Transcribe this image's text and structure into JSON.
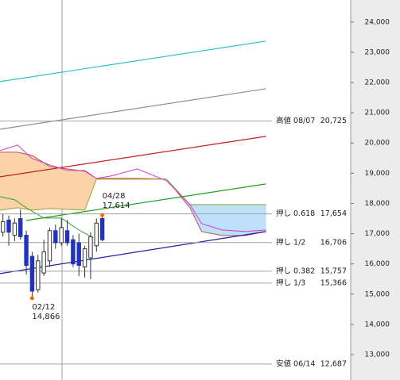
{
  "chart_data": {
    "type": "candlestick",
    "ylim": [
      12160,
      24730
    ],
    "yticks": [
      {
        "value": 24000,
        "label": "24,000"
      },
      {
        "value": 23000,
        "label": "23,000"
      },
      {
        "value": 22000,
        "label": "22,000"
      },
      {
        "value": 21000,
        "label": "21,000"
      },
      {
        "value": 20000,
        "label": "20,000"
      },
      {
        "value": 19000,
        "label": "19,000"
      },
      {
        "value": 18000,
        "label": "18,000"
      },
      {
        "value": 17000,
        "label": "17,000"
      },
      {
        "value": 16000,
        "label": "16,000"
      },
      {
        "value": 15000,
        "label": "15,000"
      },
      {
        "value": 14000,
        "label": "14,000"
      },
      {
        "value": 13000,
        "label": "13,000"
      }
    ],
    "xlim": [
      0.5,
      60.5
    ],
    "candles": {
      "x": [
        1,
        2,
        3,
        4,
        5,
        6,
        7,
        8,
        9,
        10,
        11,
        12,
        13,
        14,
        15,
        16,
        17,
        18
      ],
      "open": [
        17050,
        17450,
        16950,
        17500,
        16950,
        16250,
        15150,
        15700,
        16100,
        17100,
        16700,
        17100,
        16800,
        16700,
        15900,
        16200,
        16600,
        17500
      ],
      "high": [
        17650,
        17600,
        17500,
        17800,
        17100,
        16400,
        16300,
        16800,
        17200,
        17300,
        17500,
        17450,
        16950,
        17000,
        16600,
        17050,
        17500,
        17614
      ],
      "low": [
        16900,
        16600,
        16750,
        16800,
        15650,
        14866,
        15050,
        15600,
        15900,
        16500,
        16600,
        16600,
        15900,
        15600,
        15550,
        15500,
        16400,
        16750
      ],
      "close": [
        17400,
        17050,
        17350,
        16900,
        15950,
        15100,
        16100,
        16400,
        17100,
        16700,
        17200,
        16700,
        16000,
        15950,
        16500,
        16900,
        17350,
        16800
      ],
      "up_color": "#ffffff",
      "down_color": "#2233bb",
      "edge_color": "#333333"
    },
    "cloud": {
      "x": [
        0.5,
        3.5,
        6,
        9,
        12,
        15,
        17,
        19.5,
        24,
        29,
        33,
        35,
        38.5,
        42.5,
        46
      ],
      "span_a": {
        "color": "#c05050",
        "values": [
          19695,
          19695,
          19590,
          19223,
          19144,
          19065,
          18829,
          18829,
          18829,
          18803,
          17858,
          17070,
          16939,
          16939,
          17070
        ]
      },
      "span_b": {
        "color": "#9aa030",
        "values": [
          17779,
          17858,
          17779,
          17831,
          17805,
          17779,
          18803,
          18803,
          18803,
          18803,
          17963,
          17963,
          17963,
          17963,
          17963
        ]
      },
      "up_color": "#fcd3a8",
      "down_color": "#bfe0fb"
    },
    "lines": [
      {
        "color": "#d040d0",
        "x": [
          0.5,
          3.5,
          6,
          9,
          12,
          15,
          17,
          19.5,
          24,
          29,
          33,
          35,
          38.5,
          42.5,
          46
        ],
        "values": [
          19748,
          19931,
          19485,
          19275,
          19091,
          19091,
          18829,
          18908,
          19144,
          18750,
          17963,
          17333,
          17123,
          17070,
          17123
        ]
      },
      {
        "color": "#30a030",
        "x": [
          0.5,
          3,
          5,
          8,
          11,
          14,
          16.5
        ],
        "values": [
          18225,
          18120,
          17858,
          17516,
          17516,
          17123,
          16860
        ]
      }
    ],
    "trendlines": [
      {
        "color": "#30c0c0",
        "x": [
          0.5,
          46
        ],
        "values": [
          22031,
          23370
        ]
      },
      {
        "color": "#909090",
        "x": [
          0.5,
          46
        ],
        "values": [
          20456,
          21795
        ]
      },
      {
        "color": "#c02020",
        "x": [
          0.5,
          46
        ],
        "values": [
          18881,
          20220
        ]
      },
      {
        "color": "#20a020",
        "x": [
          5,
          46
        ],
        "values": [
          17438,
          18645
        ]
      },
      {
        "color": "#2020a0",
        "x": [
          0.5,
          46
        ],
        "values": [
          15679,
          17070
        ]
      }
    ],
    "levels": [
      {
        "label": "高値 08/07",
        "value": 20725,
        "value_label": "20,725"
      },
      {
        "label": "押し 0.618",
        "value": 17654,
        "value_label": "17,654"
      },
      {
        "label": "押し 1/2",
        "value": 16706,
        "value_label": "16,706"
      },
      {
        "label": "押し 0.382",
        "value": 15757,
        "value_label": "15,757"
      },
      {
        "label": "押し 1/3",
        "value": 15366,
        "value_label": "15,366"
      },
      {
        "label": "安値 06/14",
        "value": 12687,
        "value_label": "12,687"
      }
    ],
    "annotations": [
      {
        "label": "04/28",
        "x": 18,
        "value": 17614,
        "value_label": "17,614",
        "position": "above"
      },
      {
        "label": "02/12",
        "x": 6,
        "value": 14866,
        "value_label": "14,866",
        "position": "below"
      }
    ],
    "marker_color": "#ff6600"
  }
}
